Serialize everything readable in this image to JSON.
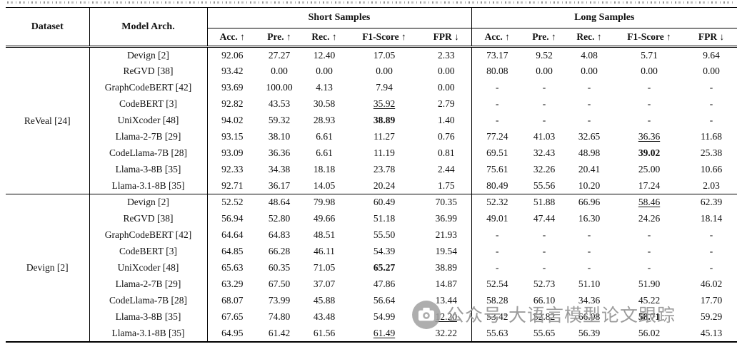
{
  "table": {
    "headers": {
      "dataset": "Dataset",
      "model": "Model Arch.",
      "metrics": [
        "Acc. ↑",
        "Pre. ↑",
        "Rec. ↑",
        "F1-Score ↑",
        "FPR ↓"
      ]
    },
    "col_groups": [
      {
        "label": "Short Samples"
      },
      {
        "label": "Long Samples"
      }
    ],
    "groups": [
      {
        "dataset": "ReVeal [24]",
        "rows": [
          {
            "model": "Devign [2]",
            "short": [
              "92.06",
              "27.27",
              "12.40",
              "17.05",
              "2.33"
            ],
            "long": [
              "73.17",
              "9.52",
              "4.08",
              "5.71",
              "9.64"
            ]
          },
          {
            "model": "ReGVD [38]",
            "short": [
              "93.42",
              "0.00",
              "0.00",
              "0.00",
              "0.00"
            ],
            "long": [
              "80.08",
              "0.00",
              "0.00",
              "0.00",
              "0.00"
            ]
          },
          {
            "model": "GraphCodeBERT [42]",
            "short": [
              "93.69",
              "100.00",
              "4.13",
              "7.94",
              "0.00"
            ],
            "long": [
              "-",
              "-",
              "-",
              "-",
              "-"
            ]
          },
          {
            "model": "CodeBERT [3]",
            "short": [
              "92.82",
              "43.53",
              "30.58",
              {
                "v": "35.92",
                "s": "u"
              },
              "2.79"
            ],
            "long": [
              "-",
              "-",
              "-",
              "-",
              "-"
            ]
          },
          {
            "model": "UniXcoder [48]",
            "short": [
              "94.02",
              "59.32",
              "28.93",
              {
                "v": "38.89",
                "s": "b"
              },
              "1.40"
            ],
            "long": [
              "-",
              "-",
              "-",
              "-",
              "-"
            ]
          },
          {
            "model": "Llama-2-7B [29]",
            "short": [
              "93.15",
              "38.10",
              "6.61",
              "11.27",
              "0.76"
            ],
            "long": [
              "77.24",
              "41.03",
              "32.65",
              {
                "v": "36.36",
                "s": "u"
              },
              "11.68"
            ]
          },
          {
            "model": "CodeLlama-7B [28]",
            "short": [
              "93.09",
              "36.36",
              "6.61",
              "11.19",
              "0.81"
            ],
            "long": [
              "69.51",
              "32.43",
              "48.98",
              {
                "v": "39.02",
                "s": "b"
              },
              "25.38"
            ]
          },
          {
            "model": "Llama-3-8B [35]",
            "short": [
              "92.33",
              "34.38",
              "18.18",
              "23.78",
              "2.44"
            ],
            "long": [
              "75.61",
              "32.26",
              "20.41",
              "25.00",
              "10.66"
            ]
          },
          {
            "model": "Llama-3.1-8B [35]",
            "short": [
              "92.71",
              "36.17",
              "14.05",
              "20.24",
              "1.75"
            ],
            "long": [
              "80.49",
              "55.56",
              "10.20",
              "17.24",
              "2.03"
            ]
          }
        ]
      },
      {
        "dataset": "Devign [2]",
        "rows": [
          {
            "model": "Devign [2]",
            "short": [
              "52.52",
              "48.64",
              "79.98",
              "60.49",
              "70.35"
            ],
            "long": [
              "52.32",
              "51.88",
              "66.96",
              {
                "v": "58.46",
                "s": "u"
              },
              "62.39"
            ]
          },
          {
            "model": "ReGVD [38]",
            "short": [
              "56.94",
              "52.80",
              "49.66",
              "51.18",
              "36.99"
            ],
            "long": [
              "49.01",
              "47.44",
              "16.30",
              "24.26",
              "18.14"
            ]
          },
          {
            "model": "GraphCodeBERT [42]",
            "short": [
              "64.64",
              "64.83",
              "48.51",
              "55.50",
              "21.93"
            ],
            "long": [
              "-",
              "-",
              "-",
              "-",
              "-"
            ]
          },
          {
            "model": "CodeBERT [3]",
            "short": [
              "64.85",
              "66.28",
              "46.11",
              "54.39",
              "19.54"
            ],
            "long": [
              "-",
              "-",
              "-",
              "-",
              "-"
            ]
          },
          {
            "model": "UniXcoder [48]",
            "short": [
              "65.63",
              "60.35",
              "71.05",
              {
                "v": "65.27",
                "s": "b"
              },
              "38.89"
            ],
            "long": [
              "-",
              "-",
              "-",
              "-",
              "-"
            ]
          },
          {
            "model": "Llama-2-7B [29]",
            "short": [
              "63.29",
              "67.50",
              "37.07",
              "47.86",
              "14.87"
            ],
            "long": [
              "52.54",
              "52.73",
              "51.10",
              "51.90",
              "46.02"
            ]
          },
          {
            "model": "CodeLlama-7B [28]",
            "short": [
              "68.07",
              "73.99",
              "45.88",
              "56.64",
              "13.44"
            ],
            "long": [
              "58.28",
              "66.10",
              "34.36",
              "45.22",
              "17.70"
            ]
          },
          {
            "model": "Llama-3-8B [35]",
            "short": [
              "67.65",
              "74.80",
              "43.48",
              "54.99",
              {
                "v": "12.20",
                "s": "u"
              }
            ],
            "long": [
              "53.42",
              "52.82",
              "66.08",
              {
                "v": "58.71",
                "s": "b"
              },
              "59.29"
            ]
          },
          {
            "model": "Llama-3.1-8B [35]",
            "short": [
              "64.95",
              "61.42",
              "61.56",
              {
                "v": "61.49",
                "s": "u"
              },
              "32.22"
            ],
            "long": [
              "55.63",
              "55.65",
              "56.39",
              "56.02",
              "45.13"
            ]
          }
        ]
      }
    ]
  },
  "watermark": {
    "icon": "camera-icon",
    "text": "公众号·大语言模型论文跟踪"
  }
}
